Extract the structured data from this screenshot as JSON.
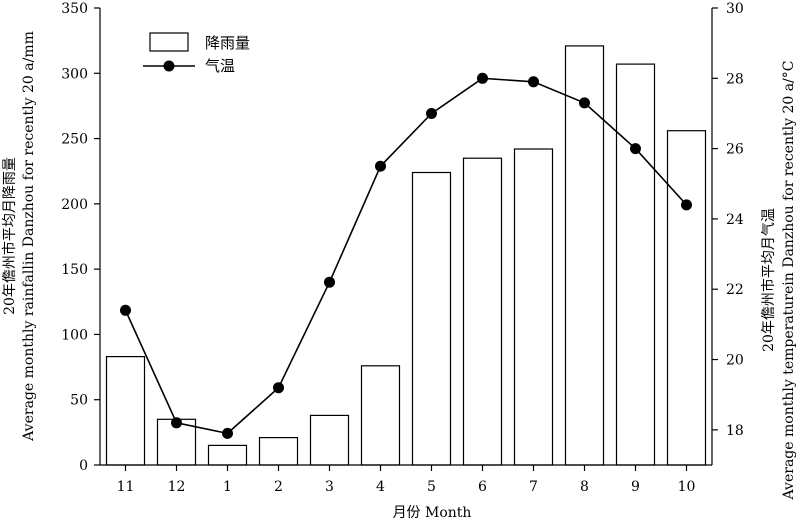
{
  "chart_data": {
    "type": "bar+line",
    "categories": [
      "11",
      "12",
      "1",
      "2",
      "3",
      "4",
      "5",
      "6",
      "7",
      "8",
      "9",
      "10"
    ],
    "series": [
      {
        "name": "降雨量",
        "type": "bar",
        "axis": "left",
        "values": [
          83,
          35,
          15,
          21,
          38,
          76,
          224,
          235,
          242,
          321,
          307,
          256
        ]
      },
      {
        "name": "气温",
        "type": "line",
        "axis": "right",
        "values": [
          21.4,
          18.2,
          17.9,
          19.2,
          22.2,
          25.5,
          27.0,
          28.0,
          27.9,
          27.3,
          26.0,
          24.4
        ]
      }
    ],
    "xlabel": "月份 Month",
    "ylabel_left": [
      "20年儋州市平均月降雨量",
      "Average monthly rainfallin Danzhou for recently 20 a/mm"
    ],
    "ylabel_right": [
      "20年儋州市平均月气温",
      "Average monthly temperaturein Danzhou for recently 20 a/°C"
    ],
    "ylim_left": [
      0,
      350
    ],
    "yticks_left": [
      0,
      50,
      100,
      150,
      200,
      250,
      300,
      350
    ],
    "ylim_right": [
      17,
      30
    ],
    "yticks_right": [
      18,
      20,
      22,
      24,
      26,
      28,
      30
    ],
    "grid": false,
    "legend_position": "top-left"
  }
}
